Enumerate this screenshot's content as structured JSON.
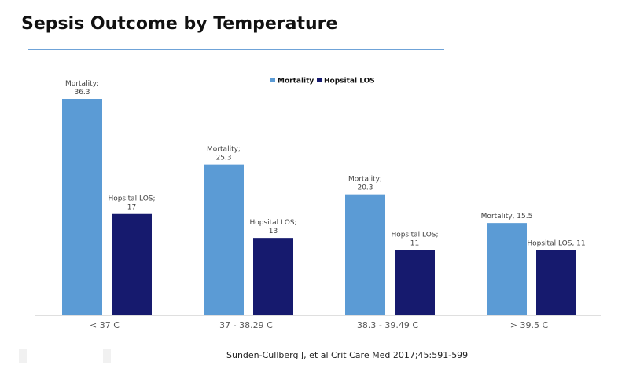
{
  "title": "Sepsis Outcome by Temperature",
  "citation": "Sunden-Cullberg J, et al Crit Care Med 2017;45:591-599",
  "colors": {
    "mortality": "#5B9BD5",
    "hospital_los": "#161A6E",
    "title_rule": "#6FA3D8",
    "axis": "#BFBFBF",
    "label_text": "#404040",
    "tick_text": "#595959"
  },
  "chart_data": {
    "type": "bar",
    "title": "Sepsis Outcome by Temperature",
    "categories": [
      "< 37 C",
      "37 - 38.29 C",
      "38.3 - 39.49 C",
      "> 39.5 C"
    ],
    "series": [
      {
        "name": "Mortality",
        "values": [
          36.3,
          25.3,
          20.3,
          15.5
        ]
      },
      {
        "name": "Hopsital LOS",
        "values": [
          17,
          13,
          11,
          11
        ]
      }
    ],
    "data_labels": [
      [
        [
          "Mortality;",
          "36.3"
        ],
        [
          "Mortality;",
          "25.3"
        ],
        [
          "Mortality;",
          "20.3"
        ],
        [
          "Mortality, 15.5"
        ]
      ],
      [
        [
          "Hopsital LOS;",
          "17"
        ],
        [
          "Hopsital LOS;",
          "13"
        ],
        [
          "Hopsital LOS;",
          "11"
        ],
        [
          "Hopsital LOS, 11"
        ]
      ]
    ],
    "xlabel": "",
    "ylabel": "",
    "ylim": [
      0,
      40
    ],
    "grid": false,
    "legend_position": "top-center"
  }
}
